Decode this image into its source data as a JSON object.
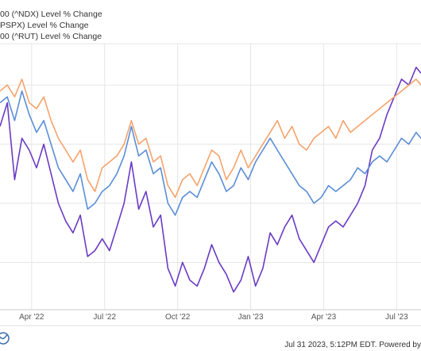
{
  "legend": [
    {
      "label": "00 (^NDX) Level % Change",
      "color": "#6a3bc4"
    },
    {
      "label": "PSPX) Level % Change",
      "color": "#f5a36c"
    },
    {
      "label": "00 (^RUT) Level % Change",
      "color": "#5b8ed6"
    }
  ],
  "footer": {
    "timestamp": "Jul 31 2023, 5:12PM EDT. Powered by",
    "logo_icon": "ycharts-logo-icon"
  },
  "chart_data": {
    "type": "line",
    "title": "",
    "xlabel": "",
    "ylabel": "",
    "x_ticks": [
      "Apr '22",
      "Jul '22",
      "Oct '22",
      "Jan '23",
      "Apr '23",
      "Jul '23"
    ],
    "x_tick_positions": [
      2,
      5,
      8,
      11,
      14,
      17
    ],
    "x_range": [
      0.7,
      18.0
    ],
    "y_range": [
      -38,
      7
    ],
    "y_gridlines": [
      0,
      -10,
      -20,
      -30
    ],
    "y_tick_labels_visible": false,
    "grid": true,
    "legend_position": "top-left",
    "series": [
      {
        "name": "00 (^NDX) Level % Change",
        "color": "#6a3bc4",
        "x": [
          0.7,
          1.0,
          1.3,
          1.6,
          1.9,
          2.2,
          2.5,
          2.8,
          3.1,
          3.4,
          3.7,
          4.0,
          4.3,
          4.6,
          4.9,
          5.2,
          5.5,
          5.8,
          6.1,
          6.4,
          6.7,
          7.0,
          7.3,
          7.6,
          7.9,
          8.2,
          8.5,
          8.8,
          9.1,
          9.4,
          9.7,
          10.0,
          10.3,
          10.6,
          10.9,
          11.2,
          11.5,
          11.8,
          12.1,
          12.4,
          12.7,
          13.0,
          13.3,
          13.6,
          13.9,
          14.2,
          14.5,
          14.8,
          15.1,
          15.4,
          15.7,
          16.0,
          16.3,
          16.6,
          16.9,
          17.2,
          17.5,
          17.8,
          18.0
        ],
        "values": [
          -7,
          -3,
          -16,
          -9,
          -11,
          -14,
          -10,
          -15,
          -20,
          -23,
          -25,
          -22,
          -29,
          -28,
          -26,
          -28,
          -24,
          -20,
          -13,
          -21,
          -18,
          -24,
          -22,
          -31,
          -34,
          -30,
          -33,
          -34,
          -31,
          -27,
          -30,
          -32,
          -35,
          -33,
          -29,
          -34,
          -31,
          -25,
          -27,
          -24,
          -22,
          -26,
          -28,
          -30,
          -27,
          -24,
          -23,
          -24,
          -22,
          -20,
          -17,
          -11,
          -9,
          -5,
          -2,
          1,
          0,
          3,
          2
        ]
      },
      {
        "name": "PSPX) Level % Change",
        "color": "#f5a36c",
        "x": [
          0.7,
          1.0,
          1.3,
          1.6,
          1.9,
          2.2,
          2.5,
          2.8,
          3.1,
          3.4,
          3.7,
          4.0,
          4.3,
          4.6,
          4.9,
          5.2,
          5.5,
          5.8,
          6.1,
          6.4,
          6.7,
          7.0,
          7.3,
          7.6,
          7.9,
          8.2,
          8.5,
          8.8,
          9.1,
          9.4,
          9.7,
          10.0,
          10.3,
          10.6,
          10.9,
          11.2,
          11.5,
          11.8,
          12.1,
          12.4,
          12.7,
          13.0,
          13.3,
          13.6,
          13.9,
          14.2,
          14.5,
          14.8,
          15.1,
          15.4,
          15.7,
          16.0,
          16.3,
          16.6,
          16.9,
          17.2,
          17.5,
          17.8,
          18.0
        ],
        "values": [
          -1,
          0,
          -2,
          1,
          -3,
          -4,
          -2,
          -6,
          -9,
          -11,
          -13,
          -11,
          -16,
          -18,
          -14,
          -13,
          -12,
          -10,
          -6,
          -10,
          -9,
          -13,
          -12,
          -17,
          -19,
          -16,
          -15,
          -17,
          -14,
          -11,
          -12,
          -16,
          -14,
          -11,
          -14,
          -12,
          -10,
          -8,
          -6,
          -9,
          -7,
          -10,
          -11,
          -9,
          -8,
          -7,
          -9,
          -6,
          -8,
          -7,
          -6,
          -5,
          -4,
          -3,
          -2,
          -1,
          0,
          1,
          0
        ]
      },
      {
        "name": "00 (^RUT) Level % Change",
        "color": "#5b8ed6",
        "x": [
          0.7,
          1.0,
          1.3,
          1.6,
          1.9,
          2.2,
          2.5,
          2.8,
          3.1,
          3.4,
          3.7,
          4.0,
          4.3,
          4.6,
          4.9,
          5.2,
          5.5,
          5.8,
          6.1,
          6.4,
          6.7,
          7.0,
          7.3,
          7.6,
          7.9,
          8.2,
          8.5,
          8.8,
          9.1,
          9.4,
          9.7,
          10.0,
          10.3,
          10.6,
          10.9,
          11.2,
          11.5,
          11.8,
          12.1,
          12.4,
          12.7,
          13.0,
          13.3,
          13.6,
          13.9,
          14.2,
          14.5,
          14.8,
          15.1,
          15.4,
          15.7,
          16.0,
          16.3,
          16.6,
          16.9,
          17.2,
          17.5,
          17.8,
          18.0
        ],
        "values": [
          -3,
          -2,
          -6,
          -1,
          -5,
          -8,
          -6,
          -10,
          -14,
          -16,
          -18,
          -15,
          -21,
          -20,
          -18,
          -17,
          -15,
          -12,
          -7,
          -12,
          -11,
          -15,
          -14,
          -20,
          -22,
          -19,
          -18,
          -19,
          -16,
          -13,
          -15,
          -18,
          -17,
          -14,
          -16,
          -13,
          -11,
          -9,
          -11,
          -13,
          -15,
          -17,
          -18,
          -20,
          -19,
          -17,
          -18,
          -17,
          -16,
          -14,
          -15,
          -13,
          -12,
          -13,
          -11,
          -9,
          -10,
          -8,
          -9
        ]
      }
    ]
  }
}
